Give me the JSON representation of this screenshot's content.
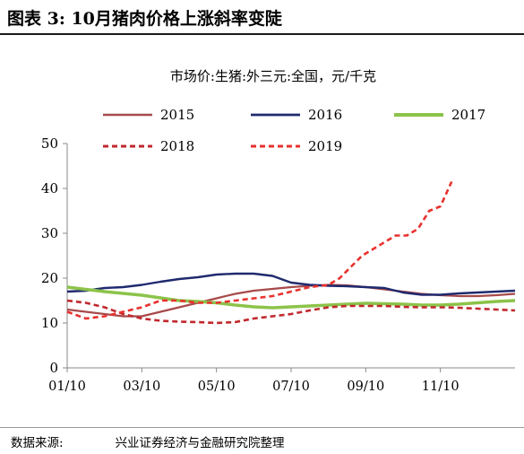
{
  "figure": {
    "title": "图表 3:   10月猪肉价格上涨斜率变陡",
    "source_label": "数据来源:",
    "source_text": "兴业证券经济与金融研究院整理"
  },
  "chart_data": {
    "type": "line",
    "title": "市场价:生猪:外三元:全国，元/千克",
    "xlabel": "",
    "ylabel": "",
    "ylim": [
      0,
      50
    ],
    "yticks": [
      0,
      10,
      20,
      30,
      40,
      50
    ],
    "xlim": [
      0,
      12
    ],
    "xticks": [
      {
        "v": 0,
        "label": "01/10"
      },
      {
        "v": 2,
        "label": "03/10"
      },
      {
        "v": 4,
        "label": "05/10"
      },
      {
        "v": 6,
        "label": "07/10"
      },
      {
        "v": 8,
        "label": "09/10"
      },
      {
        "v": 10,
        "label": "11/10"
      }
    ],
    "grid": false,
    "legend_position": "top",
    "series": [
      {
        "name": "2015",
        "color": "#a84a4a",
        "width": 2.2,
        "dash": "",
        "points": [
          [
            0,
            13.0
          ],
          [
            0.5,
            12.5
          ],
          [
            1,
            12.0
          ],
          [
            1.5,
            11.5
          ],
          [
            2,
            11.5
          ],
          [
            2.5,
            12.5
          ],
          [
            3,
            13.5
          ],
          [
            3.5,
            14.5
          ],
          [
            4,
            15.5
          ],
          [
            4.5,
            16.5
          ],
          [
            5,
            17.2
          ],
          [
            5.5,
            17.6
          ],
          [
            6,
            18.0
          ],
          [
            6.5,
            18.3
          ],
          [
            7,
            18.5
          ],
          [
            7.5,
            18.4
          ],
          [
            8,
            18.0
          ],
          [
            8.5,
            17.5
          ],
          [
            9,
            17.0
          ],
          [
            9.5,
            16.5
          ],
          [
            10,
            16.2
          ],
          [
            10.5,
            16.0
          ],
          [
            11,
            16.0
          ],
          [
            11.5,
            16.2
          ],
          [
            12,
            16.5
          ]
        ]
      },
      {
        "name": "2016",
        "color": "#1f2a6e",
        "width": 2.4,
        "dash": "",
        "points": [
          [
            0,
            17.0
          ],
          [
            0.5,
            17.2
          ],
          [
            1,
            17.8
          ],
          [
            1.5,
            18.0
          ],
          [
            2,
            18.5
          ],
          [
            2.5,
            19.2
          ],
          [
            3,
            19.8
          ],
          [
            3.5,
            20.2
          ],
          [
            4,
            20.8
          ],
          [
            4.5,
            21.0
          ],
          [
            5,
            21.0
          ],
          [
            5.5,
            20.5
          ],
          [
            6,
            19.0
          ],
          [
            6.5,
            18.5
          ],
          [
            7,
            18.3
          ],
          [
            7.5,
            18.2
          ],
          [
            8,
            18.0
          ],
          [
            8.5,
            17.8
          ],
          [
            9,
            16.8
          ],
          [
            9.5,
            16.3
          ],
          [
            10,
            16.3
          ],
          [
            10.5,
            16.6
          ],
          [
            11,
            16.8
          ],
          [
            11.5,
            17.0
          ],
          [
            12,
            17.2
          ]
        ]
      },
      {
        "name": "2017",
        "color": "#8cc34a",
        "width": 3.5,
        "dash": "",
        "points": [
          [
            0,
            18.0
          ],
          [
            0.5,
            17.5
          ],
          [
            1,
            17.0
          ],
          [
            1.5,
            16.6
          ],
          [
            2,
            16.2
          ],
          [
            2.5,
            15.6
          ],
          [
            3,
            15.0
          ],
          [
            3.5,
            14.8
          ],
          [
            4,
            14.5
          ],
          [
            4.5,
            14.0
          ],
          [
            5,
            13.6
          ],
          [
            5.5,
            13.4
          ],
          [
            6,
            13.6
          ],
          [
            6.5,
            13.8
          ],
          [
            7,
            14.0
          ],
          [
            7.5,
            14.2
          ],
          [
            8,
            14.4
          ],
          [
            8.5,
            14.3
          ],
          [
            9,
            14.2
          ],
          [
            9.5,
            14.0
          ],
          [
            10,
            14.0
          ],
          [
            10.5,
            14.2
          ],
          [
            11,
            14.5
          ],
          [
            11.5,
            14.8
          ],
          [
            12,
            15.0
          ]
        ]
      },
      {
        "name": "2018",
        "color": "#c0282d",
        "width": 2.6,
        "dash": "6,4",
        "points": [
          [
            0,
            15.0
          ],
          [
            0.5,
            14.5
          ],
          [
            1,
            13.5
          ],
          [
            1.5,
            12.0
          ],
          [
            2,
            11.0
          ],
          [
            2.5,
            10.5
          ],
          [
            3,
            10.3
          ],
          [
            3.5,
            10.2
          ],
          [
            4,
            10.0
          ],
          [
            4.5,
            10.2
          ],
          [
            5,
            11.0
          ],
          [
            5.5,
            11.5
          ],
          [
            6,
            12.0
          ],
          [
            6.5,
            12.8
          ],
          [
            7,
            13.5
          ],
          [
            7.5,
            13.8
          ],
          [
            8,
            13.8
          ],
          [
            8.5,
            13.8
          ],
          [
            9,
            13.6
          ],
          [
            9.5,
            13.5
          ],
          [
            10,
            13.5
          ],
          [
            10.5,
            13.4
          ],
          [
            11,
            13.2
          ],
          [
            11.5,
            13.0
          ],
          [
            12,
            12.8
          ]
        ]
      },
      {
        "name": "2019",
        "color": "#e8312e",
        "width": 2.6,
        "dash": "6,4",
        "points": [
          [
            0,
            12.5
          ],
          [
            0.5,
            11.0
          ],
          [
            1,
            11.5
          ],
          [
            1.5,
            12.5
          ],
          [
            2,
            13.5
          ],
          [
            2.5,
            15.0
          ],
          [
            3,
            15.0
          ],
          [
            3.5,
            14.5
          ],
          [
            4,
            14.5
          ],
          [
            4.5,
            15.0
          ],
          [
            5,
            15.5
          ],
          [
            5.5,
            16.0
          ],
          [
            6,
            17.0
          ],
          [
            6.5,
            18.0
          ],
          [
            7,
            18.5
          ],
          [
            7.3,
            20.0
          ],
          [
            7.6,
            22.5
          ],
          [
            7.9,
            25.0
          ],
          [
            8.2,
            26.5
          ],
          [
            8.5,
            28.0
          ],
          [
            8.8,
            29.5
          ],
          [
            9.1,
            29.5
          ],
          [
            9.4,
            31.0
          ],
          [
            9.7,
            35.0
          ],
          [
            10.0,
            36.0
          ],
          [
            10.3,
            41.5
          ]
        ]
      }
    ]
  }
}
